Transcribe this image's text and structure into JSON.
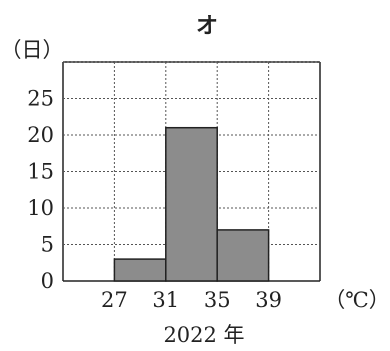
{
  "chart_data": {
    "type": "bar",
    "title": "オ",
    "ylabel": "（日）",
    "xlabel": "2022 年",
    "x_unit": "（℃）",
    "bins": [
      {
        "from": 27,
        "to": 31,
        "value": 3
      },
      {
        "from": 31,
        "to": 35,
        "value": 21
      },
      {
        "from": 35,
        "to": 39,
        "value": 7
      }
    ],
    "x_ticks": [
      "27",
      "31",
      "35",
      "39"
    ],
    "y_ticks": [
      "0",
      "5",
      "10",
      "15",
      "20",
      "25"
    ],
    "xlim": [
      23,
      43
    ],
    "ylim": [
      0,
      30
    ],
    "grid": true,
    "bar_color": "#8c8c8c"
  }
}
